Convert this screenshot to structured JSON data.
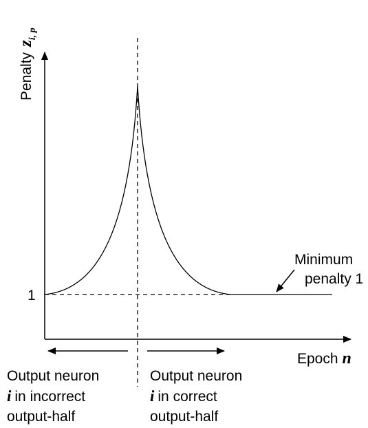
{
  "axes": {
    "y_label": "Penalty",
    "y_symbol": "z",
    "y_subscript": "i, p",
    "x_label": "Epoch",
    "x_symbol": "n",
    "y_tick": "1"
  },
  "annotation": {
    "lines": [
      "Minimum",
      "penalty 1"
    ]
  },
  "regions": [
    {
      "line1": "Output neuron",
      "symbol": "i",
      "line2": "in incorrect",
      "line3": "output-half"
    },
    {
      "line1": "Output neuron",
      "symbol": "i",
      "line2": "in correct",
      "line3": "output-half"
    }
  ]
}
